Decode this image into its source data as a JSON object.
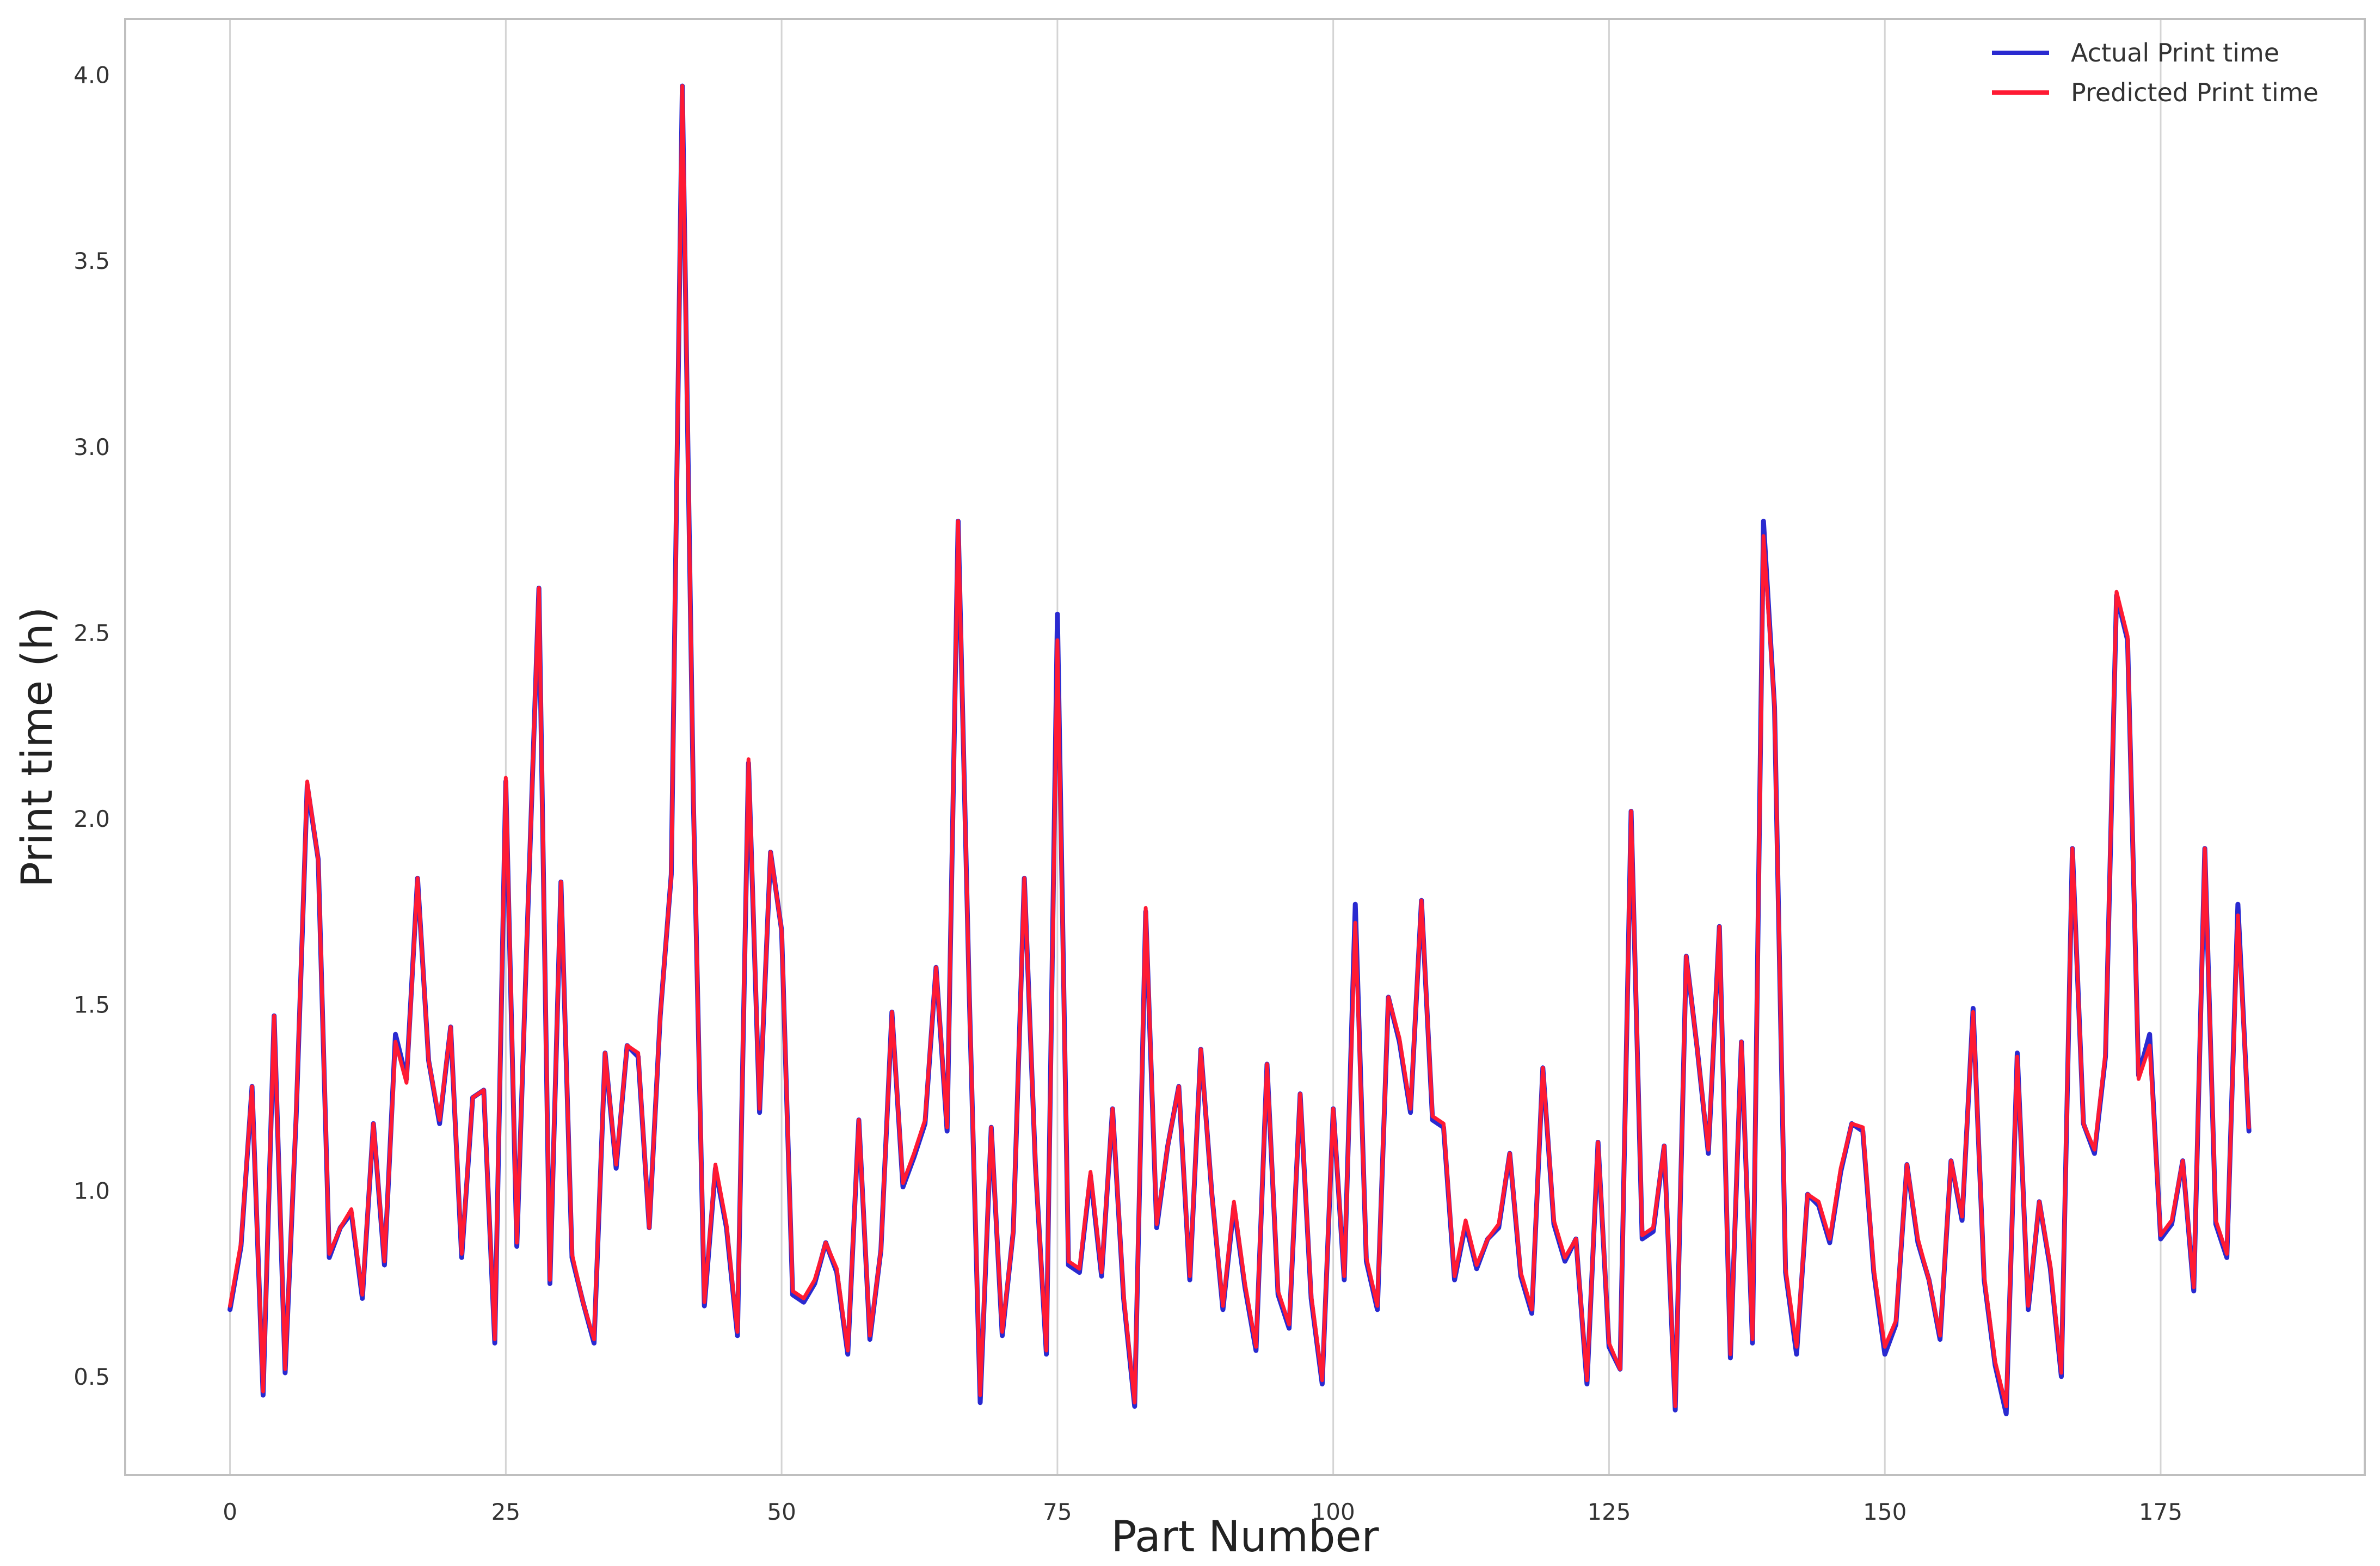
{
  "chart_data": {
    "type": "line",
    "title": "",
    "xlabel": "Part Number",
    "ylabel": "Print time (h)",
    "xlim": [
      -9.5,
      193.5
    ],
    "ylim": [
      0.235,
      4.15
    ],
    "xticks": [
      0,
      25,
      50,
      75,
      100,
      125,
      150,
      175
    ],
    "xtick_labels": [
      "0",
      "25",
      "50",
      "75",
      "100",
      "125",
      "150",
      "175"
    ],
    "yticks": [
      0.5,
      1.0,
      1.5,
      2.0,
      2.5,
      3.0,
      3.5,
      4.0
    ],
    "ytick_labels": [
      "0.5",
      "1.0",
      "1.5",
      "2.0",
      "2.5",
      "3.0",
      "3.5",
      "4.0"
    ],
    "grid": "vertical",
    "legend_position": "top-right",
    "x_start": 0,
    "x_step": 1,
    "series": [
      {
        "name": "Actual Print time",
        "color": "#2a2ad0",
        "values": [
          0.68,
          0.85,
          1.28,
          0.45,
          1.47,
          0.51,
          1.2,
          2.09,
          1.89,
          0.82,
          0.9,
          0.94,
          0.71,
          1.18,
          0.8,
          1.42,
          1.3,
          1.84,
          1.35,
          1.18,
          1.44,
          0.82,
          1.25,
          1.27,
          0.59,
          2.1,
          0.85,
          1.75,
          2.62,
          0.75,
          1.83,
          0.82,
          0.7,
          0.59,
          1.37,
          1.06,
          1.39,
          1.36,
          0.9,
          1.47,
          1.85,
          3.97,
          2.05,
          0.69,
          1.06,
          0.9,
          0.61,
          2.15,
          1.21,
          1.91,
          1.7,
          0.72,
          0.7,
          0.75,
          0.86,
          0.78,
          0.56,
          1.19,
          0.6,
          0.84,
          1.48,
          1.01,
          1.09,
          1.18,
          1.6,
          1.16,
          2.8,
          1.54,
          0.43,
          1.17,
          0.61,
          0.89,
          1.84,
          1.07,
          0.56,
          2.55,
          0.8,
          0.78,
          1.04,
          0.77,
          1.22,
          0.71,
          0.42,
          1.75,
          0.9,
          1.12,
          1.28,
          0.76,
          1.38,
          0.99,
          0.68,
          0.96,
          0.74,
          0.57,
          1.34,
          0.72,
          0.63,
          1.26,
          0.71,
          0.48,
          1.22,
          0.76,
          1.77,
          0.81,
          0.68,
          1.52,
          1.4,
          1.21,
          1.78,
          1.19,
          1.17,
          0.76,
          0.91,
          0.79,
          0.87,
          0.9,
          1.1,
          0.77,
          0.67,
          1.33,
          0.91,
          0.81,
          0.87,
          0.48,
          1.13,
          0.58,
          0.52,
          2.02,
          0.87,
          0.89,
          1.12,
          0.41,
          1.63,
          1.38,
          1.1,
          1.71,
          0.55,
          1.4,
          0.59,
          2.8,
          2.3,
          0.78,
          0.56,
          0.99,
          0.96,
          0.86,
          1.05,
          1.18,
          1.16,
          0.78,
          0.56,
          0.64,
          1.07,
          0.86,
          0.76,
          0.6,
          1.08,
          0.92,
          1.49,
          0.76,
          0.53,
          0.4,
          1.37,
          0.68,
          0.97,
          0.79,
          0.5,
          1.92,
          1.18,
          1.1,
          1.36,
          2.6,
          2.48,
          1.31,
          1.42,
          0.87,
          0.91,
          1.08,
          0.73,
          1.92,
          0.91,
          0.82,
          1.77,
          1.16
        ]
      },
      {
        "name": "Predicted Print time",
        "color": "#ff1a33",
        "values": [
          0.69,
          0.86,
          1.28,
          0.46,
          1.47,
          0.52,
          1.21,
          2.1,
          1.89,
          0.83,
          0.9,
          0.95,
          0.72,
          1.18,
          0.81,
          1.4,
          1.29,
          1.84,
          1.35,
          1.19,
          1.44,
          0.83,
          1.25,
          1.27,
          0.6,
          2.11,
          0.86,
          1.75,
          2.62,
          0.76,
          1.83,
          0.83,
          0.7,
          0.6,
          1.37,
          1.07,
          1.39,
          1.37,
          0.9,
          1.47,
          1.85,
          3.97,
          2.05,
          0.7,
          1.07,
          0.91,
          0.62,
          2.16,
          1.22,
          1.91,
          1.7,
          0.73,
          0.71,
          0.76,
          0.86,
          0.79,
          0.57,
          1.19,
          0.61,
          0.84,
          1.48,
          1.02,
          1.1,
          1.19,
          1.6,
          1.17,
          2.8,
          1.54,
          0.45,
          1.17,
          0.62,
          0.89,
          1.84,
          1.07,
          0.57,
          2.48,
          0.81,
          0.79,
          1.05,
          0.78,
          1.22,
          0.72,
          0.43,
          1.76,
          0.91,
          1.12,
          1.28,
          0.77,
          1.38,
          0.99,
          0.69,
          0.97,
          0.75,
          0.58,
          1.34,
          0.73,
          0.64,
          1.26,
          0.72,
          0.49,
          1.22,
          0.77,
          1.72,
          0.82,
          0.69,
          1.52,
          1.41,
          1.22,
          1.78,
          1.2,
          1.18,
          0.77,
          0.92,
          0.8,
          0.87,
          0.91,
          1.1,
          0.78,
          0.68,
          1.33,
          0.92,
          0.82,
          0.87,
          0.49,
          1.13,
          0.59,
          0.52,
          2.02,
          0.88,
          0.9,
          1.12,
          0.42,
          1.63,
          1.38,
          1.11,
          1.71,
          0.56,
          1.4,
          0.6,
          2.76,
          2.3,
          0.79,
          0.58,
          0.99,
          0.97,
          0.87,
          1.06,
          1.18,
          1.17,
          0.79,
          0.58,
          0.65,
          1.07,
          0.87,
          0.76,
          0.61,
          1.08,
          0.93,
          1.48,
          0.77,
          0.54,
          0.42,
          1.36,
          0.69,
          0.97,
          0.8,
          0.51,
          1.92,
          1.18,
          1.11,
          1.37,
          2.61,
          2.49,
          1.3,
          1.39,
          0.88,
          0.92,
          1.08,
          0.74,
          1.92,
          0.92,
          0.83,
          1.74,
          1.17
        ]
      }
    ]
  }
}
